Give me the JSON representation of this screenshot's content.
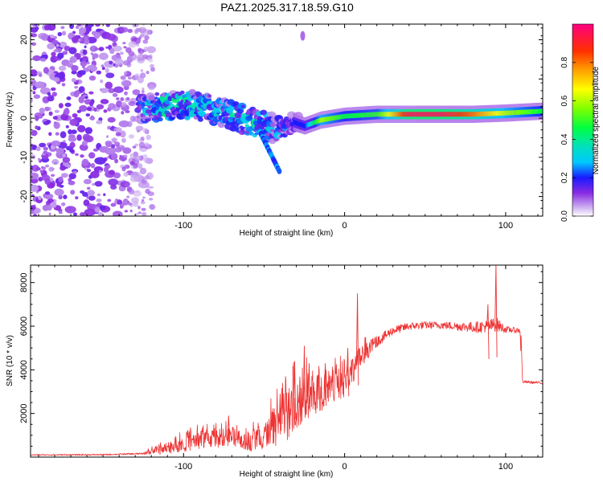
{
  "title": "PAZ1.2025.317.18.59.G10",
  "chart_data": [
    {
      "type": "heatmap",
      "name": "spectrogram",
      "xlabel": "Height of straight line (km)",
      "ylabel": "Frequency (Hz)",
      "xlim": [
        -195,
        123
      ],
      "ylim": [
        -25,
        24
      ],
      "x_ticks": [
        -100,
        0,
        100
      ],
      "y_ticks": [
        -20,
        -10,
        0,
        10,
        20
      ],
      "colorbar": {
        "label": "Normalized spectral amplitude",
        "range": [
          0,
          1
        ],
        "ticks": [
          0.0,
          0.2,
          0.4,
          0.6,
          0.8
        ],
        "tick_labels": [
          "0.0",
          "0.2",
          "0.4",
          "0.6",
          "0.8"
        ]
      },
      "ridge": {
        "description_x_km": [
          -125,
          -110,
          -95,
          -80,
          -65,
          -50,
          -40,
          -32,
          -25,
          -15,
          0,
          20,
          40,
          60,
          80,
          100,
          123
        ],
        "frequency_hz": [
          2.5,
          3,
          3.5,
          2,
          0,
          -2,
          -3,
          -1,
          -2,
          -0.5,
          0.5,
          1,
          1,
          1,
          1,
          1.3,
          1.8
        ],
        "peak_amplitude": [
          0.3,
          0.45,
          0.4,
          0.35,
          0.35,
          0.4,
          0.3,
          0.2,
          0.2,
          0.6,
          0.45,
          0.5,
          0.95,
          0.95,
          0.8,
          0.6,
          0.45
        ]
      },
      "noise_region_x_km": [
        -195,
        -125
      ]
    },
    {
      "type": "line",
      "name": "snr",
      "xlabel": "Height of straight line (km)",
      "ylabel": "SNR (10 * v/v)",
      "xlim": [
        -195,
        123
      ],
      "ylim": [
        0,
        8800
      ],
      "x_ticks": [
        -100,
        0,
        100
      ],
      "y_ticks": [
        2000,
        4000,
        6000,
        8000
      ],
      "color": "#ee3333",
      "envelope": {
        "x": [
          -195,
          -150,
          -125,
          -115,
          -100,
          -85,
          -70,
          -60,
          -50,
          -45,
          -40,
          -30,
          -25,
          -20,
          -10,
          0,
          10,
          20,
          30,
          40,
          50,
          60,
          70,
          80,
          90,
          94,
          100,
          109,
          110,
          123
        ],
        "mean": [
          100,
          110,
          160,
          350,
          650,
          850,
          950,
          700,
          1000,
          1300,
          1600,
          2400,
          2600,
          2900,
          3200,
          3500,
          4600,
          5300,
          5800,
          6000,
          6050,
          6050,
          6000,
          5950,
          6000,
          6100,
          5850,
          5800,
          3450,
          3400
        ],
        "amp": [
          25,
          30,
          40,
          250,
          400,
          450,
          450,
          450,
          700,
          900,
          1100,
          1300,
          1200,
          1000,
          900,
          800,
          500,
          250,
          200,
          180,
          170,
          170,
          200,
          250,
          300,
          350,
          150,
          120,
          60,
          60
        ]
      },
      "spikes": [
        {
          "x": 8,
          "y": 7500
        },
        {
          "x": 94,
          "y": 8800
        },
        {
          "x": 89,
          "y": 7000
        },
        {
          "x": -25,
          "y": 5100
        },
        {
          "x": -31,
          "y": 4400
        },
        {
          "x": -28,
          "y": 3000
        },
        {
          "x": -22,
          "y": 4300
        },
        {
          "x": 2,
          "y": 5000
        },
        {
          "x": -12,
          "y": 4300
        },
        {
          "x": -72,
          "y": 1900
        },
        {
          "x": -40,
          "y": 2900
        }
      ]
    }
  ]
}
